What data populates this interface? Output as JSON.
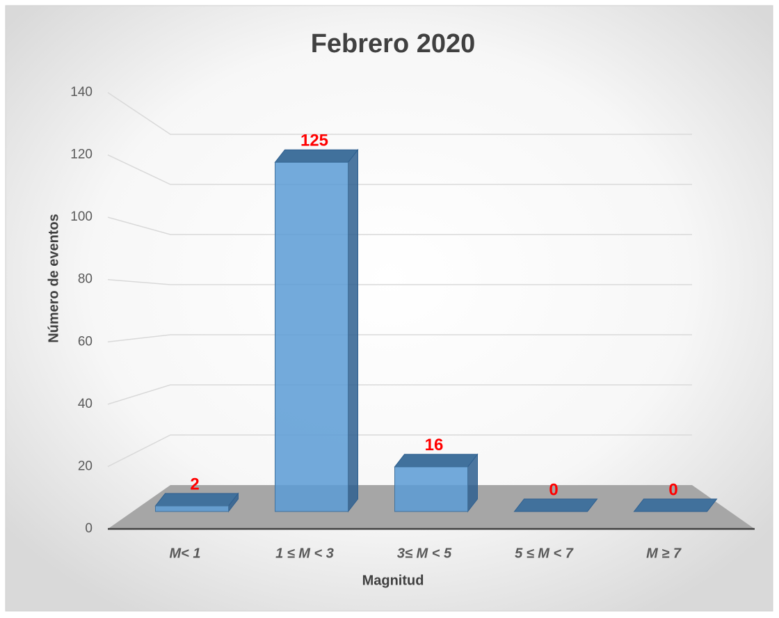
{
  "chart_data": {
    "type": "bar3d",
    "title": "Febrero 2020",
    "x_label": "Magnitud",
    "y_label": "Número de eventos",
    "categories": [
      "M< 1",
      "1 ≤ M < 3",
      "3≤ M < 5",
      "5 ≤ M < 7",
      "M ≥ 7"
    ],
    "values": [
      2,
      125,
      16,
      0,
      0
    ],
    "color": "#5b9bd5",
    "label_color": "#ff0000",
    "ylim": [
      0,
      140
    ],
    "yticks": [
      0,
      20,
      40,
      60,
      80,
      100,
      120,
      140
    ],
    "grid": true
  }
}
